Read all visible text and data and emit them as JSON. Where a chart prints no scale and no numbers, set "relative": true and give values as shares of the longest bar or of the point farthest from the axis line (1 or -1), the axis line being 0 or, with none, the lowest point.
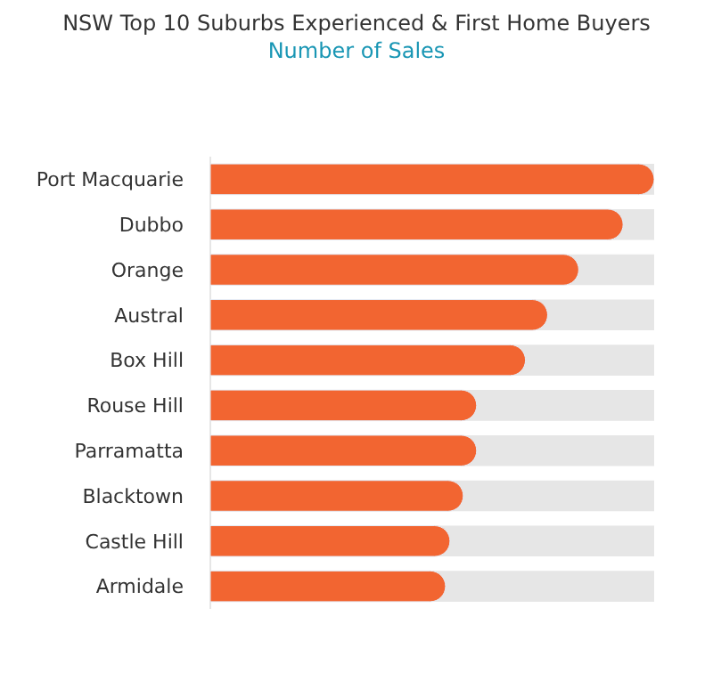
{
  "chart_data": {
    "type": "bar",
    "orientation": "horizontal",
    "relative": true,
    "title": "NSW Top 10 Suburbs Experienced & First Home Buyers",
    "subtitle": "Number of Sales",
    "categories": [
      "Port Macquarie",
      "Dubbo",
      "Orange",
      "Austral",
      "Box Hill",
      "Rouse Hill",
      "Parramatta",
      "Blacktown",
      "Castle Hill",
      "Armidale"
    ],
    "values": [
      1,
      0.93,
      0.83,
      0.76,
      0.71,
      0.6,
      0.6,
      0.57,
      0.54,
      0.53
    ],
    "color": "#f26531"
  }
}
